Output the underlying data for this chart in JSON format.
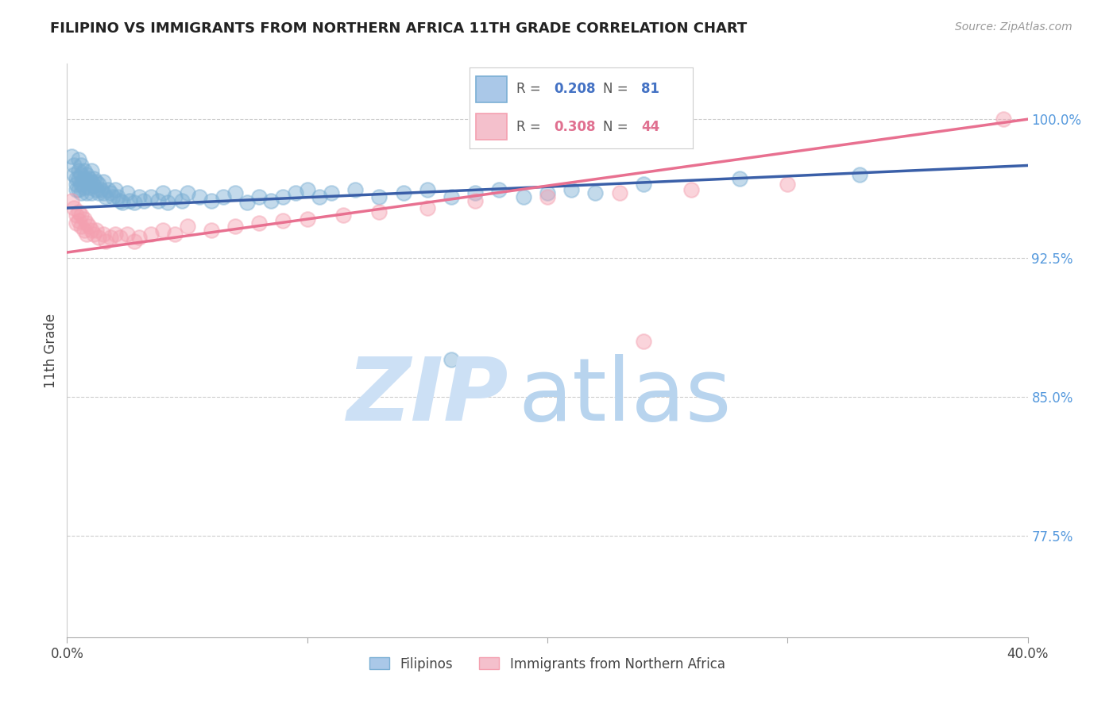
{
  "title": "FILIPINO VS IMMIGRANTS FROM NORTHERN AFRICA 11TH GRADE CORRELATION CHART",
  "source": "Source: ZipAtlas.com",
  "ylabel_label": "11th Grade",
  "ytick_labels": [
    "100.0%",
    "92.5%",
    "85.0%",
    "77.5%"
  ],
  "ytick_values": [
    1.0,
    0.925,
    0.85,
    0.775
  ],
  "xlim": [
    0.0,
    0.4
  ],
  "ylim": [
    0.72,
    1.03
  ],
  "R_blue": 0.208,
  "N_blue": 81,
  "R_pink": 0.308,
  "N_pink": 44,
  "blue_color": "#7bafd4",
  "pink_color": "#f4a0b0",
  "blue_line_color": "#3a5fa8",
  "pink_line_color": "#e87090",
  "legend_blue_text_color": "#4472c4",
  "legend_pink_text_color": "#e07090",
  "watermark_zip_color": "#cce0f5",
  "watermark_atlas_color": "#b8d4ee",
  "right_label_color": "#5599dd",
  "blue_scatter_x": [
    0.002,
    0.003,
    0.003,
    0.004,
    0.004,
    0.004,
    0.005,
    0.005,
    0.005,
    0.005,
    0.006,
    0.006,
    0.006,
    0.006,
    0.007,
    0.007,
    0.007,
    0.008,
    0.008,
    0.008,
    0.009,
    0.009,
    0.01,
    0.01,
    0.01,
    0.011,
    0.011,
    0.012,
    0.012,
    0.013,
    0.013,
    0.014,
    0.015,
    0.015,
    0.016,
    0.017,
    0.018,
    0.019,
    0.02,
    0.021,
    0.022,
    0.023,
    0.025,
    0.026,
    0.028,
    0.03,
    0.032,
    0.035,
    0.038,
    0.04,
    0.042,
    0.045,
    0.048,
    0.05,
    0.055,
    0.06,
    0.065,
    0.07,
    0.075,
    0.08,
    0.085,
    0.09,
    0.095,
    0.1,
    0.105,
    0.11,
    0.12,
    0.13,
    0.14,
    0.15,
    0.16,
    0.17,
    0.18,
    0.19,
    0.2,
    0.21,
    0.22,
    0.24,
    0.28,
    0.33,
    0.16
  ],
  "blue_scatter_y": [
    0.98,
    0.975,
    0.97,
    0.968,
    0.965,
    0.962,
    0.978,
    0.972,
    0.968,
    0.962,
    0.975,
    0.97,
    0.965,
    0.96,
    0.972,
    0.968,
    0.963,
    0.97,
    0.966,
    0.96,
    0.968,
    0.963,
    0.972,
    0.966,
    0.96,
    0.968,
    0.964,
    0.966,
    0.962,
    0.965,
    0.96,
    0.962,
    0.966,
    0.96,
    0.958,
    0.962,
    0.96,
    0.958,
    0.962,
    0.958,
    0.956,
    0.955,
    0.96,
    0.956,
    0.955,
    0.958,
    0.956,
    0.958,
    0.956,
    0.96,
    0.955,
    0.958,
    0.956,
    0.96,
    0.958,
    0.956,
    0.958,
    0.96,
    0.955,
    0.958,
    0.956,
    0.958,
    0.96,
    0.962,
    0.958,
    0.96,
    0.962,
    0.958,
    0.96,
    0.962,
    0.958,
    0.96,
    0.962,
    0.958,
    0.96,
    0.962,
    0.96,
    0.965,
    0.968,
    0.97,
    0.87
  ],
  "pink_scatter_x": [
    0.002,
    0.003,
    0.004,
    0.004,
    0.005,
    0.005,
    0.006,
    0.006,
    0.007,
    0.007,
    0.008,
    0.008,
    0.009,
    0.01,
    0.011,
    0.012,
    0.013,
    0.015,
    0.016,
    0.018,
    0.02,
    0.022,
    0.025,
    0.028,
    0.03,
    0.035,
    0.04,
    0.045,
    0.05,
    0.06,
    0.07,
    0.08,
    0.09,
    0.1,
    0.115,
    0.13,
    0.15,
    0.17,
    0.2,
    0.23,
    0.26,
    0.3,
    0.24,
    0.39
  ],
  "pink_scatter_y": [
    0.956,
    0.952,
    0.948,
    0.944,
    0.95,
    0.945,
    0.948,
    0.942,
    0.946,
    0.94,
    0.944,
    0.938,
    0.942,
    0.94,
    0.938,
    0.94,
    0.936,
    0.938,
    0.934,
    0.936,
    0.938,
    0.936,
    0.938,
    0.934,
    0.936,
    0.938,
    0.94,
    0.938,
    0.942,
    0.94,
    0.942,
    0.944,
    0.945,
    0.946,
    0.948,
    0.95,
    0.952,
    0.956,
    0.958,
    0.96,
    0.962,
    0.965,
    0.88,
    1.0
  ],
  "blue_line_x": [
    0.0,
    0.4
  ],
  "blue_line_y": [
    0.952,
    0.975
  ],
  "pink_line_x": [
    0.0,
    0.4
  ],
  "pink_line_y": [
    0.928,
    1.0
  ]
}
